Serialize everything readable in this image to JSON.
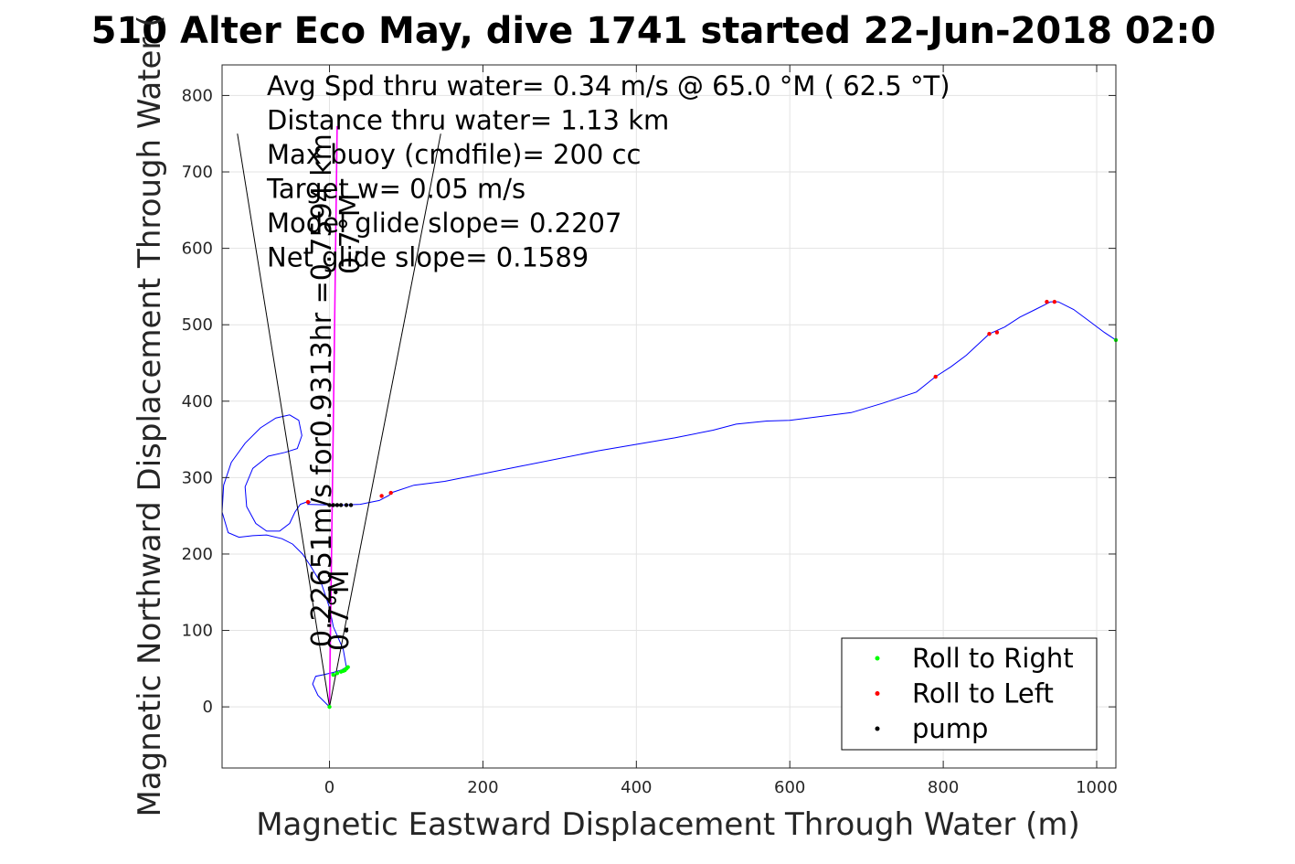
{
  "title": "510 Alter Eco May, dive 1741 started 22-Jun-2018 02:0",
  "chart_data": {
    "type": "line",
    "xlabel": "Magnetic Eastward Displacement Through Water (m)",
    "ylabel": "Magnetic Northward Displacement Through Water (",
    "xlim": [
      -140,
      1025
    ],
    "ylim": [
      -80,
      840
    ],
    "xticks": [
      0,
      200,
      400,
      600,
      800,
      1000
    ],
    "yticks": [
      0,
      100,
      200,
      300,
      400,
      500,
      600,
      700,
      800
    ],
    "grid": true,
    "annotations": [
      "Avg Spd thru water=  0.34 m/s @  65.0 °M ( 62.5 °T)",
      "Distance thru water=  1.13 km",
      "Max buoy (cmdfile)= 200 cc",
      "Target w= 0.05 m/s",
      "Model glide slope= 0.2207",
      "Net glide slope= 0.1589"
    ],
    "rotated_labels": [
      "0.22651m/s for0.9313hr =0.7594 km",
      "0.7°M",
      "0.7°M"
    ],
    "legend": {
      "placement": "bottom-right",
      "entries": [
        {
          "label": "Roll to Right",
          "color": "#00ff00"
        },
        {
          "label": "Roll to Left",
          "color": "#ff0000"
        },
        {
          "label": "pump",
          "color": "#000000"
        }
      ]
    },
    "series": [
      {
        "kind": "track",
        "color": "#0000ff",
        "x": [
          0,
          -15,
          -22,
          -18,
          -8,
          5,
          15,
          22,
          18,
          5,
          0,
          -10,
          -25,
          -35,
          -48,
          -62,
          -82,
          -100,
          -118,
          -132,
          -140,
          -138,
          -128,
          -110,
          -90,
          -70,
          -52,
          -40,
          -36,
          -42,
          -58,
          -80,
          -100,
          -110,
          -108,
          -96,
          -82,
          -65,
          -52,
          -45,
          -38,
          -30,
          -25,
          -28,
          10,
          40,
          65,
          78,
          80,
          110,
          150,
          250,
          350,
          450,
          500,
          530,
          570,
          600,
          640,
          680,
          720,
          765,
          790,
          810,
          830,
          860,
          880,
          900,
          920,
          940,
          950,
          970,
          990,
          1010,
          1025
        ],
        "y": [
          0,
          15,
          30,
          40,
          42,
          45,
          48,
          52,
          75,
          105,
          130,
          160,
          185,
          200,
          213,
          220,
          225,
          224,
          222,
          228,
          255,
          290,
          320,
          345,
          365,
          378,
          382,
          375,
          355,
          338,
          333,
          328,
          312,
          288,
          262,
          240,
          230,
          230,
          240,
          255,
          265,
          268,
          268,
          265,
          264,
          265,
          270,
          277,
          280,
          290,
          295,
          315,
          335,
          352,
          362,
          370,
          374,
          375,
          380,
          385,
          397,
          412,
          432,
          445,
          460,
          488,
          497,
          510,
          520,
          530,
          530,
          520,
          505,
          490,
          480
        ]
      },
      {
        "kind": "heading",
        "color": "#ff00ff",
        "x": [
          0,
          2,
          4,
          6,
          8,
          10
        ],
        "y": [
          0,
          150,
          300,
          450,
          600,
          760
        ]
      },
      {
        "kind": "rays",
        "color": "#000000",
        "x": [
          -120,
          0,
          145
        ],
        "y": [
          750,
          0,
          750
        ]
      }
    ],
    "markers": {
      "roll_right": {
        "color": "#00ff00",
        "x": [
          0,
          5,
          10,
          15,
          18,
          20,
          22,
          24,
          1025
        ],
        "y": [
          0,
          42,
          44,
          46,
          47,
          48,
          50,
          52,
          480
        ]
      },
      "roll_left": {
        "color": "#ff0000",
        "x": [
          -28,
          68,
          80,
          790,
          860,
          870,
          935,
          945
        ],
        "y": [
          268,
          276,
          280,
          432,
          488,
          490,
          530,
          530
        ]
      },
      "pump": {
        "color": "#000000",
        "x": [
          0,
          5,
          10,
          15,
          22,
          28,
          22,
          8
        ],
        "y": [
          264,
          264,
          264,
          264,
          264,
          264,
          100,
          150
        ]
      }
    }
  }
}
